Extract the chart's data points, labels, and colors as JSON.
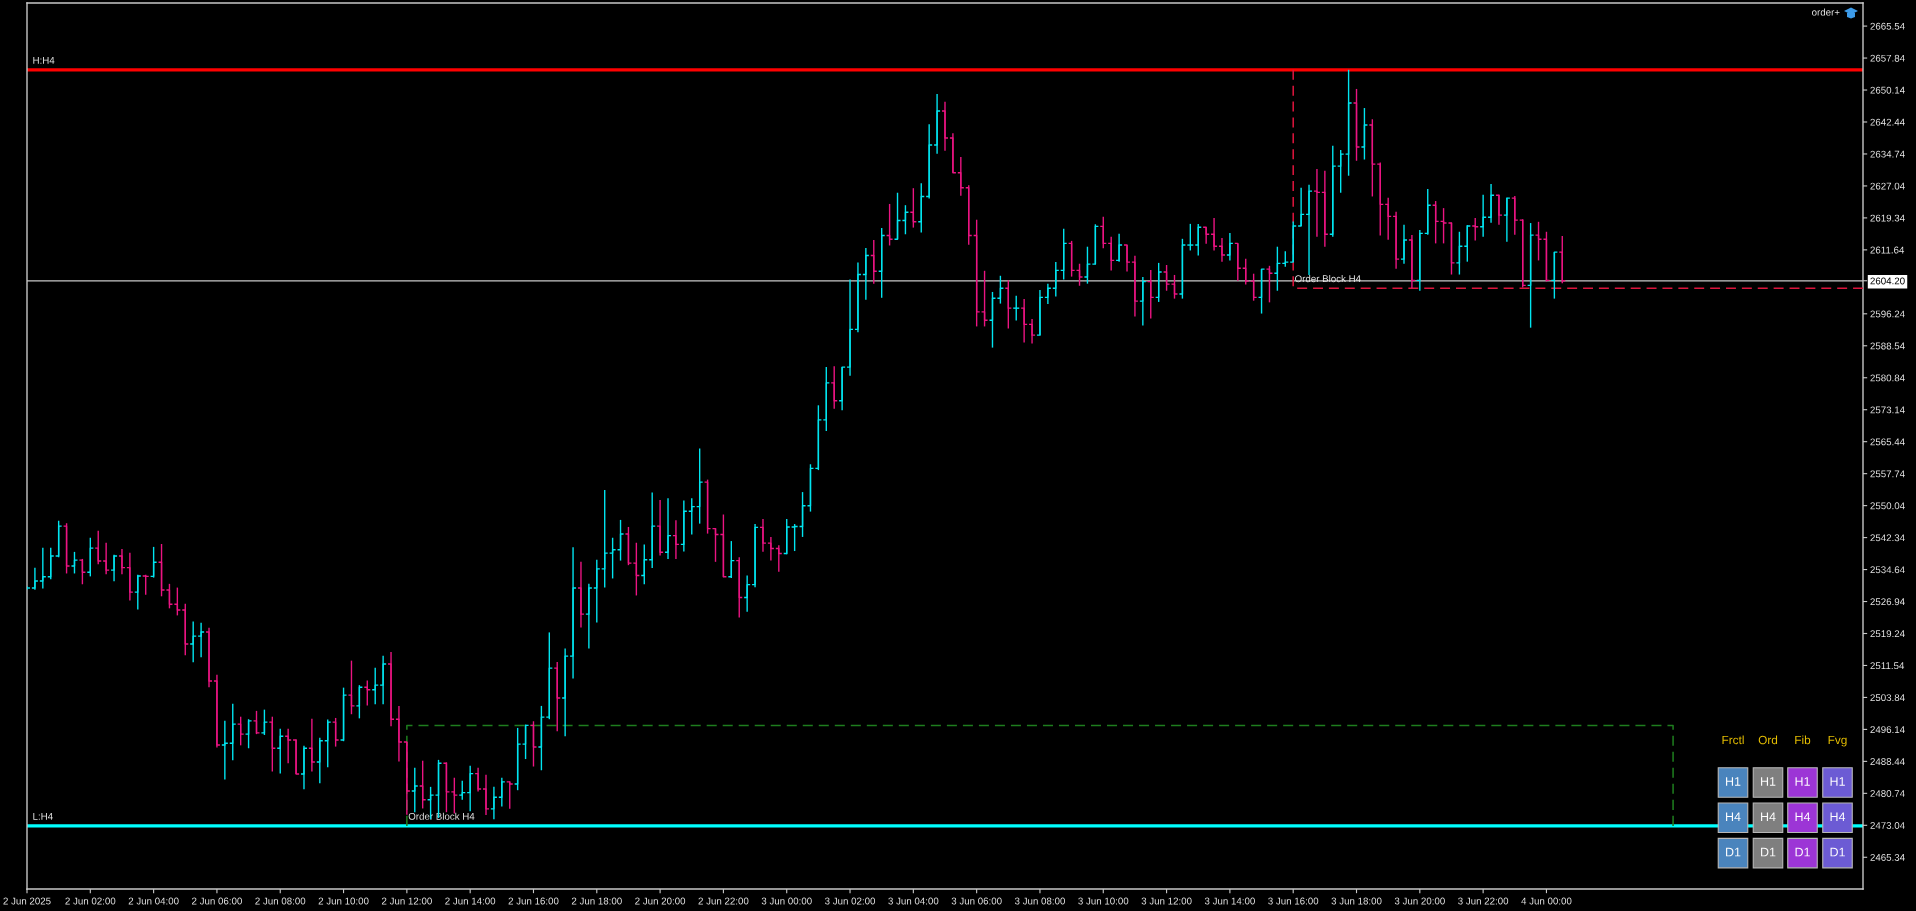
{
  "chart_data": {
    "type": "candlestick",
    "x": [
      "2025-06-02T00:00",
      "2025-06-02T00:15",
      "2025-06-02T00:30",
      "2025-06-02T00:45",
      "2025-06-02T01:00",
      "2025-06-02T01:15",
      "2025-06-02T01:30",
      "2025-06-02T01:45",
      "2025-06-02T02:00",
      "2025-06-02T02:15",
      "2025-06-02T02:30",
      "2025-06-02T02:45",
      "2025-06-02T03:00",
      "2025-06-02T03:15",
      "2025-06-02T03:30",
      "2025-06-02T03:45",
      "2025-06-02T04:00",
      "2025-06-02T04:15",
      "2025-06-02T04:30",
      "2025-06-02T04:45",
      "2025-06-02T05:00",
      "2025-06-02T05:15",
      "2025-06-02T05:30",
      "2025-06-02T05:45",
      "2025-06-02T06:00",
      "2025-06-02T06:15",
      "2025-06-02T06:30",
      "2025-06-02T06:45",
      "2025-06-02T07:00",
      "2025-06-02T07:15",
      "2025-06-02T07:30",
      "2025-06-02T07:45",
      "2025-06-02T08:00",
      "2025-06-02T08:15",
      "2025-06-02T08:30",
      "2025-06-02T08:45",
      "2025-06-02T09:00",
      "2025-06-02T09:15",
      "2025-06-02T09:30",
      "2025-06-02T09:45",
      "2025-06-02T10:00",
      "2025-06-02T10:15",
      "2025-06-02T10:30",
      "2025-06-02T10:45",
      "2025-06-02T11:00",
      "2025-06-02T11:15",
      "2025-06-02T11:30",
      "2025-06-02T11:45",
      "2025-06-02T12:00",
      "2025-06-02T12:15",
      "2025-06-02T12:30",
      "2025-06-02T12:45",
      "2025-06-02T13:00",
      "2025-06-02T13:15",
      "2025-06-02T13:30",
      "2025-06-02T13:45",
      "2025-06-02T14:00",
      "2025-06-02T14:15",
      "2025-06-02T14:30",
      "2025-06-02T14:45",
      "2025-06-02T15:00",
      "2025-06-02T15:15",
      "2025-06-02T15:30",
      "2025-06-02T15:45",
      "2025-06-02T16:00",
      "2025-06-02T16:15",
      "2025-06-02T16:30",
      "2025-06-02T16:45",
      "2025-06-02T17:00",
      "2025-06-02T17:15",
      "2025-06-02T17:30",
      "2025-06-02T17:45",
      "2025-06-02T18:00",
      "2025-06-02T18:15",
      "2025-06-02T18:30",
      "2025-06-02T18:45",
      "2025-06-02T19:00",
      "2025-06-02T19:15",
      "2025-06-02T19:30",
      "2025-06-02T19:45",
      "2025-06-02T20:00",
      "2025-06-02T20:15",
      "2025-06-02T20:30",
      "2025-06-02T20:45",
      "2025-06-02T21:00",
      "2025-06-02T21:15",
      "2025-06-02T21:30",
      "2025-06-02T21:45",
      "2025-06-02T22:00",
      "2025-06-02T22:15",
      "2025-06-02T22:30",
      "2025-06-02T22:45",
      "2025-06-02T23:00",
      "2025-06-02T23:15",
      "2025-06-02T23:30",
      "2025-06-02T23:45",
      "2025-06-03T00:00",
      "2025-06-03T00:15",
      "2025-06-03T00:30",
      "2025-06-03T00:45",
      "2025-06-03T01:00",
      "2025-06-03T01:15",
      "2025-06-03T01:30",
      "2025-06-03T01:45",
      "2025-06-03T02:00",
      "2025-06-03T02:15",
      "2025-06-03T02:30",
      "2025-06-03T02:45",
      "2025-06-03T03:00",
      "2025-06-03T03:15",
      "2025-06-03T03:30",
      "2025-06-03T03:45",
      "2025-06-03T04:00",
      "2025-06-03T04:15",
      "2025-06-03T04:30",
      "2025-06-03T04:45",
      "2025-06-03T05:00",
      "2025-06-03T05:15",
      "2025-06-03T05:30",
      "2025-06-03T05:45",
      "2025-06-03T06:00",
      "2025-06-03T06:15",
      "2025-06-03T06:30",
      "2025-06-03T06:45",
      "2025-06-03T07:00",
      "2025-06-03T07:15",
      "2025-06-03T07:30",
      "2025-06-03T07:45",
      "2025-06-03T08:00",
      "2025-06-03T08:15",
      "2025-06-03T08:30",
      "2025-06-03T08:45",
      "2025-06-03T09:00",
      "2025-06-03T09:15",
      "2025-06-03T09:30",
      "2025-06-03T09:45",
      "2025-06-03T10:00",
      "2025-06-03T10:15",
      "2025-06-03T10:30",
      "2025-06-03T10:45",
      "2025-06-03T11:00",
      "2025-06-03T11:15",
      "2025-06-03T11:30",
      "2025-06-03T11:45",
      "2025-06-03T12:00",
      "2025-06-03T12:15",
      "2025-06-03T12:30",
      "2025-06-03T12:45",
      "2025-06-03T13:00",
      "2025-06-03T13:15",
      "2025-06-03T13:30",
      "2025-06-03T13:45",
      "2025-06-03T14:00",
      "2025-06-03T14:15",
      "2025-06-03T14:30",
      "2025-06-03T14:45",
      "2025-06-03T15:00",
      "2025-06-03T15:15",
      "2025-06-03T15:30",
      "2025-06-03T15:45",
      "2025-06-03T16:00",
      "2025-06-03T16:15",
      "2025-06-03T16:30",
      "2025-06-03T16:45",
      "2025-06-03T17:00",
      "2025-06-03T17:15",
      "2025-06-03T17:30",
      "2025-06-03T17:45",
      "2025-06-03T18:00",
      "2025-06-03T18:15",
      "2025-06-03T18:30",
      "2025-06-03T18:45",
      "2025-06-03T19:00",
      "2025-06-03T19:15",
      "2025-06-03T19:30",
      "2025-06-03T19:45",
      "2025-06-03T20:00",
      "2025-06-03T20:15",
      "2025-06-03T20:30",
      "2025-06-03T20:45",
      "2025-06-03T21:00",
      "2025-06-03T21:15",
      "2025-06-03T21:30",
      "2025-06-03T21:45",
      "2025-06-03T22:00",
      "2025-06-03T22:15",
      "2025-06-03T22:30",
      "2025-06-03T22:45",
      "2025-06-03T23:00",
      "2025-06-03T23:15",
      "2025-06-03T23:30",
      "2025-06-03T23:45",
      "2025-06-04T00:00",
      "2025-06-04T00:15",
      "2025-06-04T00:30"
    ],
    "ohlc": [
      [
        2530.2,
        2530.6,
        2529.8,
        2530.2
      ],
      [
        2530.2,
        2535.1,
        2529.8,
        2531.9
      ],
      [
        2531.9,
        2539.9,
        2530.1,
        2532.9
      ],
      [
        2532.9,
        2539.9,
        2532.3,
        2537.9
      ],
      [
        2537.9,
        2546.4,
        2537.6,
        2545.1
      ],
      [
        2545.1,
        2545.8,
        2533.7,
        2535.5
      ],
      [
        2535.5,
        2538.9,
        2533.7,
        2536.9
      ],
      [
        2536.9,
        2537.2,
        2531.1,
        2534.0
      ],
      [
        2534.0,
        2542.3,
        2533.0,
        2539.8
      ],
      [
        2539.8,
        2544.0,
        2535.9,
        2536.7
      ],
      [
        2536.7,
        2541.1,
        2533.5,
        2534.5
      ],
      [
        2534.5,
        2538.2,
        2531.8,
        2537.9
      ],
      [
        2537.9,
        2539.6,
        2533.5,
        2535.1
      ],
      [
        2535.1,
        2538.7,
        2527.2,
        2529.2
      ],
      [
        2529.2,
        2533.4,
        2525.0,
        2533.1
      ],
      [
        2533.1,
        2533.4,
        2528.6,
        2533.0
      ],
      [
        2533.0,
        2540.1,
        2532.7,
        2536.4
      ],
      [
        2536.4,
        2540.8,
        2528.2,
        2529.7
      ],
      [
        2529.7,
        2531.2,
        2525.3,
        2526.3
      ],
      [
        2526.3,
        2530.3,
        2523.6,
        2524.9
      ],
      [
        2524.9,
        2526.4,
        2514.0,
        2516.7
      ],
      [
        2516.7,
        2522.1,
        2512.3,
        2518.6
      ],
      [
        2518.6,
        2521.8,
        2513.5,
        2519.6
      ],
      [
        2519.6,
        2520.6,
        2506.3,
        2507.8
      ],
      [
        2507.8,
        2509.3,
        2491.8,
        2492.4
      ],
      [
        2492.4,
        2498.2,
        2484.1,
        2492.8
      ],
      [
        2492.8,
        2502.3,
        2488.7,
        2497.4
      ],
      [
        2497.4,
        2499.2,
        2492.3,
        2495.0
      ],
      [
        2495.0,
        2498.6,
        2491.6,
        2498.2
      ],
      [
        2498.2,
        2500.6,
        2495.0,
        2495.3
      ],
      [
        2495.3,
        2500.9,
        2494.8,
        2497.9
      ],
      [
        2497.9,
        2499.2,
        2486.0,
        2491.6
      ],
      [
        2491.6,
        2496.3,
        2485.5,
        2494.5
      ],
      [
        2494.5,
        2496.3,
        2488.0,
        2493.6
      ],
      [
        2493.6,
        2493.7,
        2485.4,
        2485.4
      ],
      [
        2485.4,
        2492.2,
        2481.7,
        2491.6
      ],
      [
        2491.6,
        2498.7,
        2486.0,
        2488.3
      ],
      [
        2488.3,
        2494.1,
        2483.2,
        2493.4
      ],
      [
        2493.4,
        2498.5,
        2487.0,
        2497.9
      ],
      [
        2497.9,
        2498.9,
        2492.0,
        2493.6
      ],
      [
        2493.6,
        2506.2,
        2493.3,
        2504.4
      ],
      [
        2504.4,
        2512.7,
        2499.8,
        2501.8
      ],
      [
        2501.8,
        2506.8,
        2498.8,
        2506.3
      ],
      [
        2506.3,
        2507.9,
        2501.9,
        2505.7
      ],
      [
        2505.7,
        2511.0,
        2502.2,
        2506.8
      ],
      [
        2506.8,
        2513.9,
        2502.2,
        2511.9
      ],
      [
        2511.9,
        2514.8,
        2496.9,
        2498.6
      ],
      [
        2498.6,
        2501.8,
        2488.4,
        2493.1
      ],
      [
        2493.1,
        2493.1,
        2475.6,
        2481.3
      ],
      [
        2481.3,
        2486.9,
        2476.2,
        2482.5
      ],
      [
        2482.5,
        2488.6,
        2477.1,
        2479.2
      ],
      [
        2479.2,
        2482.3,
        2474.5,
        2480.3
      ],
      [
        2480.3,
        2488.8,
        2474.8,
        2488.0
      ],
      [
        2488.0,
        2488.2,
        2476.2,
        2481.1
      ],
      [
        2481.1,
        2484.5,
        2475.9,
        2480.3
      ],
      [
        2480.3,
        2483.8,
        2479.2,
        2480.9
      ],
      [
        2480.9,
        2487.4,
        2476.4,
        2485.5
      ],
      [
        2485.5,
        2486.9,
        2481.2,
        2481.8
      ],
      [
        2481.8,
        2485.2,
        2475.5,
        2477.0
      ],
      [
        2477.0,
        2482.3,
        2474.5,
        2479.8
      ],
      [
        2479.8,
        2484.5,
        2477.6,
        2483.5
      ],
      [
        2483.5,
        2483.6,
        2477.0,
        2483.0
      ],
      [
        2483.0,
        2496.5,
        2481.5,
        2492.6
      ],
      [
        2492.6,
        2497.3,
        2489.0,
        2497.1
      ],
      [
        2497.1,
        2498.1,
        2487.2,
        2491.9
      ],
      [
        2491.9,
        2501.8,
        2486.3,
        2499.1
      ],
      [
        2499.1,
        2519.5,
        2498.6,
        2510.9
      ],
      [
        2510.9,
        2512.4,
        2495.7,
        2503.7
      ],
      [
        2503.7,
        2515.6,
        2494.5,
        2513.8
      ],
      [
        2513.8,
        2540.0,
        2508.4,
        2530.2
      ],
      [
        2530.2,
        2536.5,
        2520.7,
        2523.9
      ],
      [
        2523.9,
        2531.2,
        2515.6,
        2530.2
      ],
      [
        2530.2,
        2537.0,
        2521.9,
        2534.8
      ],
      [
        2534.8,
        2553.8,
        2530.3,
        2538.6
      ],
      [
        2538.6,
        2542.3,
        2532.5,
        2539.4
      ],
      [
        2539.4,
        2546.6,
        2536.8,
        2543.2
      ],
      [
        2543.2,
        2544.9,
        2535.7,
        2536.2
      ],
      [
        2536.2,
        2541.1,
        2528.4,
        2533.2
      ],
      [
        2533.2,
        2540.7,
        2531.1,
        2537.0
      ],
      [
        2537.0,
        2553.2,
        2535.0,
        2545.1
      ],
      [
        2545.1,
        2551.4,
        2538.0,
        2538.8
      ],
      [
        2538.8,
        2551.8,
        2537.2,
        2542.8
      ],
      [
        2542.8,
        2546.5,
        2537.2,
        2540.7
      ],
      [
        2540.7,
        2551.3,
        2539.0,
        2548.7
      ],
      [
        2548.7,
        2551.8,
        2543.1,
        2549.8
      ],
      [
        2549.8,
        2563.8,
        2545.7,
        2555.7
      ],
      [
        2555.7,
        2556.3,
        2543.3,
        2544.5
      ],
      [
        2544.5,
        2544.6,
        2536.5,
        2543.1
      ],
      [
        2543.1,
        2547.9,
        2532.8,
        2532.9
      ],
      [
        2532.9,
        2541.5,
        2532.6,
        2536.8
      ],
      [
        2536.8,
        2537.6,
        2523.1,
        2527.9
      ],
      [
        2527.9,
        2533.2,
        2524.5,
        2531.0
      ],
      [
        2531.0,
        2545.6,
        2530.4,
        2544.8
      ],
      [
        2544.8,
        2546.8,
        2538.9,
        2541.0
      ],
      [
        2541.0,
        2542.5,
        2536.8,
        2539.7
      ],
      [
        2539.7,
        2540.5,
        2534.1,
        2538.5
      ],
      [
        2538.5,
        2546.8,
        2538.3,
        2544.9
      ],
      [
        2544.9,
        2545.6,
        2539.1,
        2545.0
      ],
      [
        2545.0,
        2553.3,
        2542.5,
        2550.0
      ],
      [
        2550.0,
        2560.0,
        2548.6,
        2559.0
      ],
      [
        2559.0,
        2574.2,
        2558.6,
        2570.7
      ],
      [
        2570.7,
        2583.4,
        2568.0,
        2579.6
      ],
      [
        2579.6,
        2583.6,
        2573.4,
        2575.3
      ],
      [
        2575.3,
        2583.4,
        2573.0,
        2583.4
      ],
      [
        2583.4,
        2604.5,
        2581.3,
        2592.5
      ],
      [
        2592.5,
        2608.6,
        2591.8,
        2605.7
      ],
      [
        2605.7,
        2612.1,
        2599.6,
        2610.3
      ],
      [
        2610.3,
        2614.0,
        2603.5,
        2606.5
      ],
      [
        2606.5,
        2616.9,
        2600.1,
        2615.1
      ],
      [
        2615.1,
        2622.7,
        2612.7,
        2614.2
      ],
      [
        2614.2,
        2625.4,
        2614.2,
        2618.7
      ],
      [
        2618.7,
        2622.4,
        2615.4,
        2620.7
      ],
      [
        2620.7,
        2626.5,
        2617.0,
        2618.4
      ],
      [
        2618.4,
        2627.7,
        2615.8,
        2624.5
      ],
      [
        2624.5,
        2641.9,
        2624.0,
        2636.9
      ],
      [
        2636.9,
        2649.2,
        2634.8,
        2645.1
      ],
      [
        2645.1,
        2647.3,
        2635.5,
        2638.6
      ],
      [
        2638.6,
        2639.7,
        2630.2,
        2630.2
      ],
      [
        2630.2,
        2634.0,
        2624.7,
        2626.6
      ],
      [
        2626.6,
        2627.2,
        2612.9,
        2615.1
      ],
      [
        2615.1,
        2618.9,
        2593.2,
        2596.7
      ],
      [
        2596.7,
        2606.6,
        2593.2,
        2594.7
      ],
      [
        2594.7,
        2601.5,
        2588.1,
        2600.0
      ],
      [
        2600.0,
        2605.4,
        2598.7,
        2602.4
      ],
      [
        2602.4,
        2604.3,
        2592.7,
        2597.6
      ],
      [
        2597.6,
        2600.6,
        2594.6,
        2597.6
      ],
      [
        2597.6,
        2599.8,
        2589.3,
        2593.7
      ],
      [
        2593.7,
        2595.0,
        2589.1,
        2591.1
      ],
      [
        2591.1,
        2602.0,
        2591.1,
        2600.2
      ],
      [
        2600.2,
        2603.5,
        2598.6,
        2602.4
      ],
      [
        2602.4,
        2608.7,
        2600.4,
        2606.7
      ],
      [
        2606.7,
        2616.7,
        2604.5,
        2613.2
      ],
      [
        2613.2,
        2613.8,
        2605.2,
        2606.7
      ],
      [
        2606.7,
        2608.3,
        2603.0,
        2605.1
      ],
      [
        2605.1,
        2612.4,
        2603.5,
        2608.2
      ],
      [
        2608.2,
        2617.8,
        2608.2,
        2617.3
      ],
      [
        2617.3,
        2619.6,
        2612.0,
        2613.2
      ],
      [
        2613.2,
        2614.8,
        2606.7,
        2609.1
      ],
      [
        2609.1,
        2615.5,
        2608.8,
        2612.8
      ],
      [
        2612.8,
        2612.8,
        2606.4,
        2608.7
      ],
      [
        2608.7,
        2610.2,
        2595.6,
        2599.3
      ],
      [
        2599.3,
        2605.1,
        2593.4,
        2604.0
      ],
      [
        2604.0,
        2606.8,
        2595.1,
        2600.2
      ],
      [
        2600.2,
        2608.5,
        2599.1,
        2606.3
      ],
      [
        2606.3,
        2608.0,
        2601.8,
        2603.4
      ],
      [
        2603.4,
        2605.6,
        2599.9,
        2601.0
      ],
      [
        2601.0,
        2614.3,
        2599.9,
        2612.8
      ],
      [
        2612.8,
        2617.9,
        2611.5,
        2612.8
      ],
      [
        2612.8,
        2617.9,
        2610.3,
        2617.1
      ],
      [
        2617.1,
        2617.1,
        2613.1,
        2615.4
      ],
      [
        2615.4,
        2619.3,
        2611.5,
        2612.5
      ],
      [
        2612.5,
        2614.5,
        2608.8,
        2610.4
      ],
      [
        2610.4,
        2615.7,
        2609.1,
        2613.2
      ],
      [
        2613.2,
        2613.2,
        2604.2,
        2607.2
      ],
      [
        2607.2,
        2609.5,
        2603.3,
        2604.1
      ],
      [
        2604.1,
        2605.9,
        2599.4,
        2600.2
      ],
      [
        2600.2,
        2607.0,
        2596.3,
        2607.0
      ],
      [
        2607.0,
        2607.8,
        2599.0,
        2606.0
      ],
      [
        2606.0,
        2612.4,
        2601.8,
        2608.4
      ],
      [
        2608.4,
        2611.3,
        2607.6,
        2608.7
      ],
      [
        2608.7,
        2618.5,
        2608.7,
        2617.4
      ],
      [
        2617.4,
        2626.6,
        2617.4,
        2620.2
      ],
      [
        2620.2,
        2627.3,
        2605.6,
        2625.8
      ],
      [
        2625.8,
        2631.1,
        2614.8,
        2625.5
      ],
      [
        2625.5,
        2630.7,
        2612.4,
        2615.4
      ],
      [
        2615.4,
        2636.7,
        2614.8,
        2631.8
      ],
      [
        2631.8,
        2635.7,
        2625.4,
        2634.7
      ],
      [
        2634.7,
        2655.0,
        2629.5,
        2647.0
      ],
      [
        2647.0,
        2650.4,
        2633.1,
        2636.4
      ],
      [
        2636.4,
        2645.8,
        2633.4,
        2641.7
      ],
      [
        2641.7,
        2643.1,
        2624.5,
        2632.3
      ],
      [
        2632.3,
        2632.7,
        2615.1,
        2622.6
      ],
      [
        2622.6,
        2624.2,
        2614.1,
        2619.7
      ],
      [
        2619.7,
        2620.8,
        2607.1,
        2609.4
      ],
      [
        2609.4,
        2617.7,
        2608.3,
        2614.0
      ],
      [
        2614.0,
        2615.2,
        2602.4,
        2604.3
      ],
      [
        2604.3,
        2616.4,
        2601.8,
        2615.6
      ],
      [
        2615.6,
        2626.3,
        2615.3,
        2622.4
      ],
      [
        2622.4,
        2623.4,
        2613.2,
        2618.5
      ],
      [
        2618.5,
        2621.7,
        2613.2,
        2618.1
      ],
      [
        2618.1,
        2618.2,
        2605.7,
        2608.5
      ],
      [
        2608.5,
        2616.0,
        2605.7,
        2612.5
      ],
      [
        2612.5,
        2617.6,
        2608.8,
        2617.4
      ],
      [
        2617.4,
        2619.3,
        2613.9,
        2617.2
      ],
      [
        2617.2,
        2624.9,
        2614.8,
        2619.5
      ],
      [
        2619.5,
        2627.5,
        2618.2,
        2624.8
      ],
      [
        2624.8,
        2624.9,
        2617.7,
        2620.0
      ],
      [
        2620.0,
        2624.2,
        2613.6,
        2624.1
      ],
      [
        2624.1,
        2624.6,
        2615.3,
        2618.8
      ],
      [
        2618.8,
        2619.0,
        2602.6,
        2603.1
      ],
      [
        2603.1,
        2618.1,
        2592.9,
        2615.2
      ],
      [
        2615.2,
        2618.4,
        2609.1,
        2614.2
      ],
      [
        2614.2,
        2616.0,
        2604.0,
        2604.3
      ],
      [
        2604.3,
        2611.1,
        2599.9,
        2611.1
      ],
      [
        2611.1,
        2615.0,
        2603.6,
        2604.2
      ]
    ],
    "colors": [
      "#00e5f0",
      "#00e5f0",
      "#00e5f0",
      "#00e5f0",
      "#00e5f0",
      "#eb1482",
      "#00e5f0",
      "#eb1482",
      "#00e5f0",
      "#eb1482",
      "#eb1482",
      "#00e5f0",
      "#eb1482",
      "#eb1482",
      "#00e5f0",
      "#eb1482",
      "#00e5f0",
      "#eb1482",
      "#eb1482",
      "#eb1482",
      "#eb1482",
      "#00e5f0",
      "#00e5f0",
      "#eb1482",
      "#eb1482",
      "#00e5f0",
      "#00e5f0",
      "#eb1482",
      "#00e5f0",
      "#eb1482",
      "#00e5f0",
      "#eb1482",
      "#00e5f0",
      "#eb1482",
      "#eb1482",
      "#00e5f0",
      "#eb1482",
      "#00e5f0",
      "#00e5f0",
      "#eb1482",
      "#00e5f0",
      "#eb1482",
      "#00e5f0",
      "#eb1482",
      "#00e5f0",
      "#00e5f0",
      "#eb1482",
      "#eb1482",
      "#eb1482",
      "#00e5f0",
      "#eb1482",
      "#00e5f0",
      "#00e5f0",
      "#eb1482",
      "#eb1482",
      "#00e5f0",
      "#00e5f0",
      "#eb1482",
      "#eb1482",
      "#00e5f0",
      "#00e5f0",
      "#eb1482",
      "#00e5f0",
      "#00e5f0",
      "#eb1482",
      "#00e5f0",
      "#00e5f0",
      "#eb1482",
      "#00e5f0",
      "#00e5f0",
      "#eb1482",
      "#00e5f0",
      "#00e5f0",
      "#00e5f0",
      "#00e5f0",
      "#00e5f0",
      "#eb1482",
      "#eb1482",
      "#00e5f0",
      "#00e5f0",
      "#eb1482",
      "#00e5f0",
      "#eb1482",
      "#00e5f0",
      "#00e5f0",
      "#00e5f0",
      "#eb1482",
      "#eb1482",
      "#eb1482",
      "#00e5f0",
      "#eb1482",
      "#00e5f0",
      "#00e5f0",
      "#eb1482",
      "#eb1482",
      "#eb1482",
      "#00e5f0",
      "#00e5f0",
      "#00e5f0",
      "#00e5f0",
      "#00e5f0",
      "#00e5f0",
      "#eb1482",
      "#00e5f0",
      "#00e5f0",
      "#00e5f0",
      "#00e5f0",
      "#eb1482",
      "#00e5f0",
      "#eb1482",
      "#00e5f0",
      "#00e5f0",
      "#eb1482",
      "#00e5f0",
      "#00e5f0",
      "#00e5f0",
      "#eb1482",
      "#eb1482",
      "#eb1482",
      "#eb1482",
      "#eb1482",
      "#eb1482",
      "#00e5f0",
      "#00e5f0",
      "#eb1482",
      "#00e5f0",
      "#eb1482",
      "#eb1482",
      "#00e5f0",
      "#00e5f0",
      "#00e5f0",
      "#00e5f0",
      "#eb1482",
      "#eb1482",
      "#00e5f0",
      "#00e5f0",
      "#eb1482",
      "#eb1482",
      "#00e5f0",
      "#eb1482",
      "#eb1482",
      "#00e5f0",
      "#eb1482",
      "#00e5f0",
      "#eb1482",
      "#eb1482",
      "#00e5f0",
      "#00e5f0",
      "#00e5f0",
      "#eb1482",
      "#eb1482",
      "#eb1482",
      "#00e5f0",
      "#eb1482",
      "#eb1482",
      "#eb1482",
      "#00e5f0",
      "#eb1482",
      "#00e5f0",
      "#00e5f0",
      "#00e5f0",
      "#00e5f0",
      "#00e5f0",
      "#eb1482",
      "#eb1482",
      "#00e5f0",
      "#00e5f0",
      "#00e5f0",
      "#eb1482",
      "#00e5f0",
      "#eb1482",
      "#eb1482",
      "#eb1482",
      "#eb1482",
      "#00e5f0",
      "#eb1482",
      "#00e5f0",
      "#00e5f0",
      "#eb1482",
      "#eb1482",
      "#eb1482",
      "#00e5f0",
      "#00e5f0",
      "#eb1482",
      "#00e5f0",
      "#00e5f0",
      "#eb1482",
      "#00e5f0",
      "#eb1482",
      "#eb1482",
      "#00e5f0",
      "#eb1482",
      "#eb1482",
      "#00e5f0",
      "#eb1482"
    ],
    "series": [
      {
        "type": "line",
        "x": [
          "2025-06-03T16:00",
          "2025-06-03T16:00",
          "2025-06-04T10:00"
        ],
        "values": [
          2655.0,
          2602.4,
          2602.4
        ],
        "color": "#dc143c",
        "line_style": "dashed"
      },
      {
        "type": "line",
        "x": [
          "2025-06-02T12:00",
          "2025-06-02T12:00",
          "2025-06-04T04:00",
          "2025-06-04T04:00"
        ],
        "values": [
          2472.9,
          2497.1,
          2497.1,
          2472.9
        ],
        "color": "#1e7d1e",
        "line_style": "dashed"
      }
    ],
    "xlim": [
      "2025-06-02T00:00",
      "2025-06-04T10:00"
    ],
    "xticks": [
      {
        "value": "2025-06-02T00:00",
        "label": "2 Jun 2025"
      },
      {
        "value": "2025-06-02T02:00",
        "label": "2 Jun 02:00"
      },
      {
        "value": "2025-06-02T04:00",
        "label": "2 Jun 04:00"
      },
      {
        "value": "2025-06-02T06:00",
        "label": "2 Jun 06:00"
      },
      {
        "value": "2025-06-02T08:00",
        "label": "2 Jun 08:00"
      },
      {
        "value": "2025-06-02T10:00",
        "label": "2 Jun 10:00"
      },
      {
        "value": "2025-06-02T12:00",
        "label": "2 Jun 12:00"
      },
      {
        "value": "2025-06-02T14:00",
        "label": "2 Jun 14:00"
      },
      {
        "value": "2025-06-02T16:00",
        "label": "2 Jun 16:00"
      },
      {
        "value": "2025-06-02T18:00",
        "label": "2 Jun 18:00"
      },
      {
        "value": "2025-06-02T20:00",
        "label": "2 Jun 20:00"
      },
      {
        "value": "2025-06-02T22:00",
        "label": "2 Jun 22:00"
      },
      {
        "value": "2025-06-03T00:00",
        "label": "3 Jun 00:00"
      },
      {
        "value": "2025-06-03T02:00",
        "label": "3 Jun 02:00"
      },
      {
        "value": "2025-06-03T04:00",
        "label": "3 Jun 04:00"
      },
      {
        "value": "2025-06-03T06:00",
        "label": "3 Jun 06:00"
      },
      {
        "value": "2025-06-03T08:00",
        "label": "3 Jun 08:00"
      },
      {
        "value": "2025-06-03T10:00",
        "label": "3 Jun 10:00"
      },
      {
        "value": "2025-06-03T12:00",
        "label": "3 Jun 12:00"
      },
      {
        "value": "2025-06-03T14:00",
        "label": "3 Jun 14:00"
      },
      {
        "value": "2025-06-03T16:00",
        "label": "3 Jun 16:00"
      },
      {
        "value": "2025-06-03T18:00",
        "label": "3 Jun 18:00"
      },
      {
        "value": "2025-06-03T20:00",
        "label": "3 Jun 20:00"
      },
      {
        "value": "2025-06-03T22:00",
        "label": "3 Jun 22:00"
      },
      {
        "value": "2025-06-04T00:00",
        "label": "4 Jun 00:00"
      }
    ],
    "ylim": [
      2457.7,
      2671.1
    ],
    "yticks": [
      2465.34,
      2473.04,
      2480.74,
      2488.44,
      2496.14,
      2503.84,
      2511.54,
      2519.24,
      2526.94,
      2534.64,
      2542.34,
      2550.04,
      2557.74,
      2565.44,
      2573.14,
      2580.84,
      2588.54,
      2596.24,
      {
        "value": 2604.2,
        "label": "2604.20"
      },
      2611.64,
      2619.34,
      2627.04,
      2634.74,
      2642.44,
      2650.14,
      2657.84,
      2665.54
    ],
    "ref_lines": [
      {
        "axis": "y",
        "value": 2655.0,
        "label": "H:H4",
        "color": "#ff0000"
      },
      {
        "axis": "y",
        "value": 2472.9,
        "label": "L:H4",
        "color": "#00ffff"
      },
      {
        "axis": "y",
        "value": 2604.2,
        "color": "#c8c8c8"
      }
    ],
    "annotations": [
      {
        "text": "Order Block H4",
        "x": "2025-06-02T12:00",
        "y": 2472.9
      },
      {
        "text": "Order Block H4",
        "x": "2025-06-03T16:00",
        "y": 2602.4
      },
      "order+",
      "Frctl",
      "Ord",
      "Fib",
      "Fvg",
      "H1",
      "H1",
      "H1",
      "H1",
      "H4",
      "H4",
      "H4",
      "H4",
      "D1",
      "D1",
      "D1",
      "D1"
    ]
  }
}
